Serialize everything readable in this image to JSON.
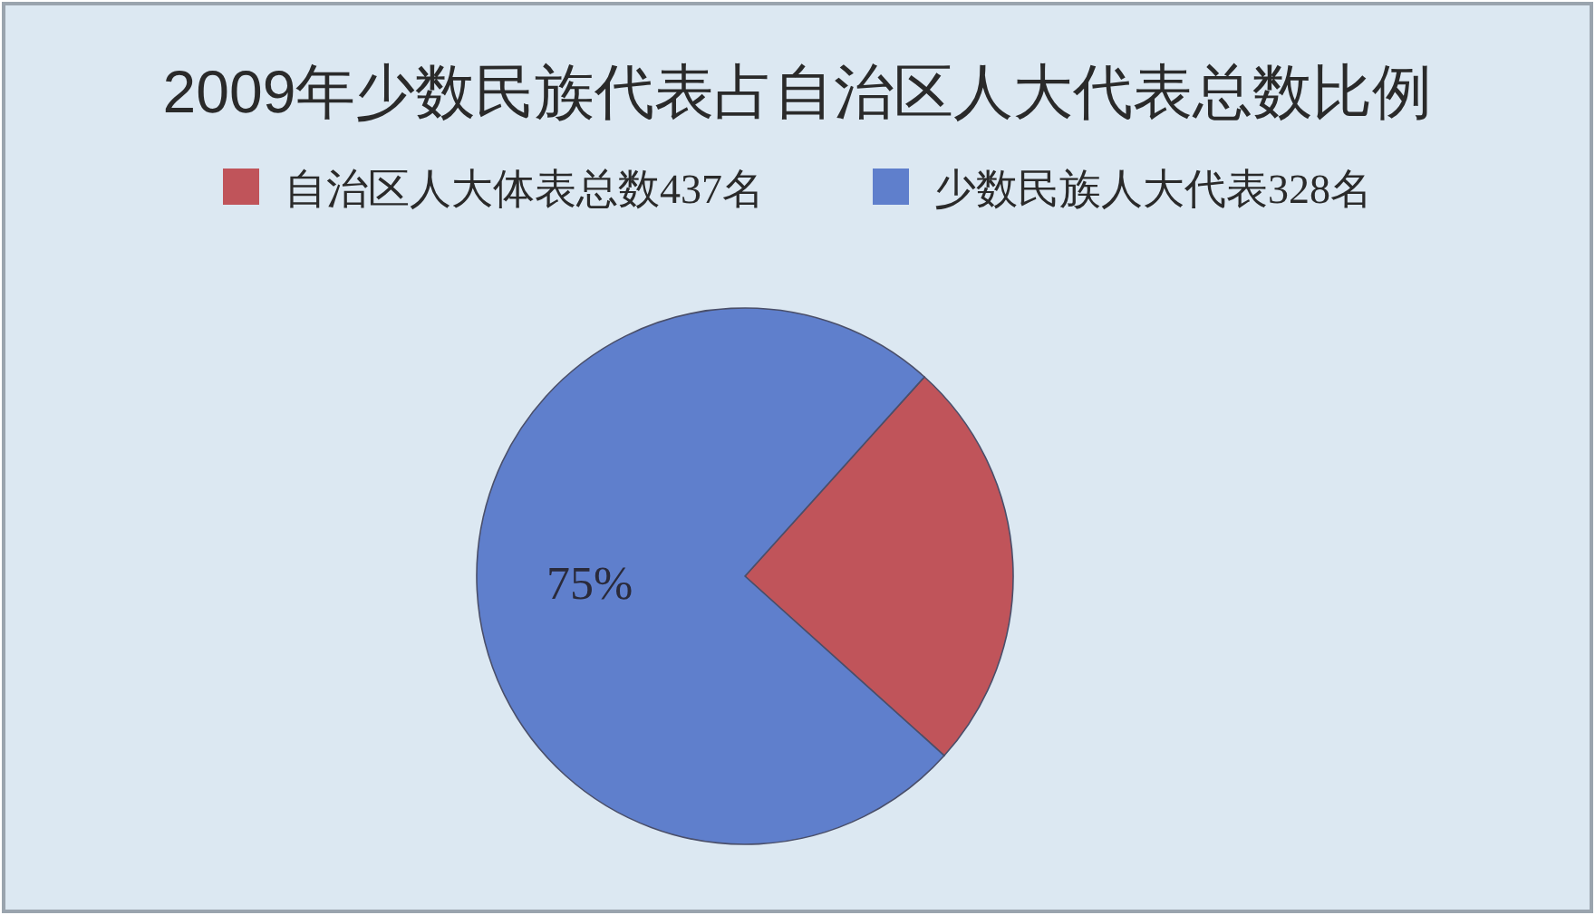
{
  "chart_data": {
    "type": "pie",
    "title": "2009年少数民族代表占自治区人大代表总数比例",
    "categories": [
      "自治区人大体表总数437名",
      "少数民族人大代表328名"
    ],
    "values": [
      25,
      75
    ],
    "colors": [
      "#c0545a",
      "#5f7fcc"
    ],
    "value_labels": [
      null,
      "75%"
    ],
    "legend": "top"
  }
}
